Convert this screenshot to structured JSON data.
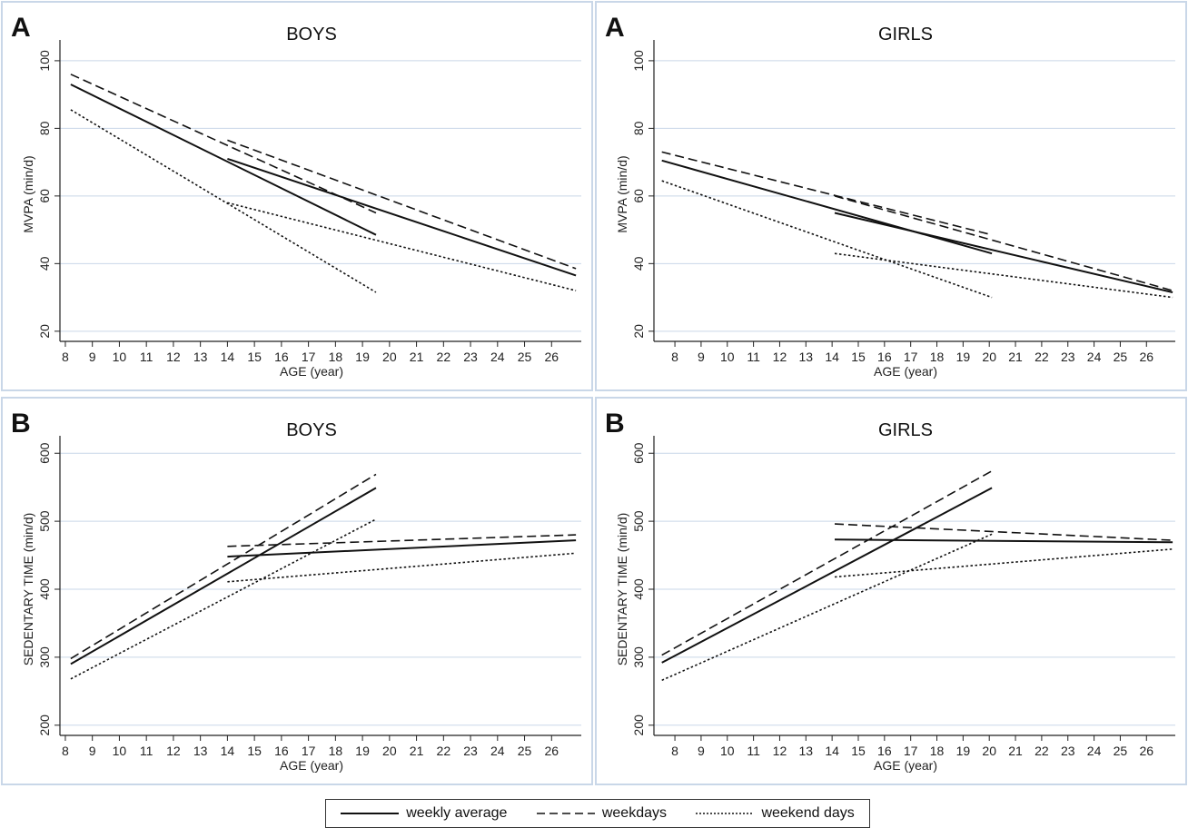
{
  "legend": {
    "items": [
      {
        "label": "weekly average",
        "style": "solid"
      },
      {
        "label": "weekdays",
        "style": "dashed"
      },
      {
        "label": "weekend days",
        "style": "dotted"
      }
    ]
  },
  "chart_data": [
    {
      "type": "line",
      "panel_letter": "A",
      "title": "BOYS",
      "xlabel": "AGE (year)",
      "ylabel": "MVPA (min/d)",
      "xlim": [
        7.8,
        27.1
      ],
      "ylim": [
        17,
        104
      ],
      "xticks": [
        8,
        9,
        10,
        11,
        12,
        13,
        14,
        15,
        16,
        17,
        18,
        19,
        20,
        21,
        22,
        23,
        24,
        25,
        26
      ],
      "yticks": [
        20,
        40,
        60,
        80,
        100
      ],
      "grid": true,
      "series": [
        {
          "name": "weekly average",
          "style": "solid",
          "x": [
            8.2,
            19.5
          ],
          "y": [
            93,
            48.5
          ]
        },
        {
          "name": "weekly average",
          "style": "solid",
          "x": [
            14,
            26.9
          ],
          "y": [
            71,
            36.5
          ]
        },
        {
          "name": "weekdays",
          "style": "dashed",
          "x": [
            8.2,
            19.5
          ],
          "y": [
            96,
            55
          ]
        },
        {
          "name": "weekdays",
          "style": "dashed",
          "x": [
            14,
            26.9
          ],
          "y": [
            76.5,
            38.5
          ]
        },
        {
          "name": "weekend days",
          "style": "dotted",
          "x": [
            8.2,
            19.5
          ],
          "y": [
            85.5,
            31.5
          ]
        },
        {
          "name": "weekend days",
          "style": "dotted",
          "x": [
            14,
            26.9
          ],
          "y": [
            58,
            32
          ]
        }
      ]
    },
    {
      "type": "line",
      "panel_letter": "A",
      "title": "GIRLS",
      "xlabel": "AGE (year)",
      "ylabel": "MVPA (min/d)",
      "xlim": [
        7.2,
        27.1
      ],
      "ylim": [
        17,
        104
      ],
      "xticks": [
        8,
        9,
        10,
        11,
        12,
        13,
        14,
        15,
        16,
        17,
        18,
        19,
        20,
        21,
        22,
        23,
        24,
        25,
        26
      ],
      "yticks": [
        20,
        40,
        60,
        80,
        100
      ],
      "grid": true,
      "series": [
        {
          "name": "weekly average",
          "style": "solid",
          "x": [
            7.5,
            20.1
          ],
          "y": [
            70.5,
            43
          ]
        },
        {
          "name": "weekly average",
          "style": "solid",
          "x": [
            14.1,
            27
          ],
          "y": [
            55,
            31.5
          ]
        },
        {
          "name": "weekdays",
          "style": "dashed",
          "x": [
            7.5,
            20.1
          ],
          "y": [
            73,
            48.5
          ]
        },
        {
          "name": "weekdays",
          "style": "dashed",
          "x": [
            14.1,
            27
          ],
          "y": [
            60,
            32
          ]
        },
        {
          "name": "weekend days",
          "style": "dotted",
          "x": [
            7.5,
            20.1
          ],
          "y": [
            64.5,
            30
          ]
        },
        {
          "name": "weekend days",
          "style": "dotted",
          "x": [
            14.1,
            27
          ],
          "y": [
            43,
            30
          ]
        }
      ]
    },
    {
      "type": "line",
      "panel_letter": "B",
      "title": "BOYS",
      "xlabel": "AGE (year)",
      "ylabel": "SEDENTARY TIME (min/d)",
      "xlim": [
        7.8,
        27.1
      ],
      "ylim": [
        185,
        615
      ],
      "xticks": [
        8,
        9,
        10,
        11,
        12,
        13,
        14,
        15,
        16,
        17,
        18,
        19,
        20,
        21,
        22,
        23,
        24,
        25,
        26
      ],
      "yticks": [
        200,
        300,
        400,
        500,
        600
      ],
      "grid": true,
      "series": [
        {
          "name": "weekly average",
          "style": "solid",
          "x": [
            8.2,
            19.5
          ],
          "y": [
            290,
            549
          ]
        },
        {
          "name": "weekly average",
          "style": "solid",
          "x": [
            14,
            26.9
          ],
          "y": [
            448,
            472
          ]
        },
        {
          "name": "weekdays",
          "style": "dashed",
          "x": [
            8.2,
            19.5
          ],
          "y": [
            298,
            569
          ]
        },
        {
          "name": "weekdays",
          "style": "dashed",
          "x": [
            14,
            26.9
          ],
          "y": [
            463,
            480
          ]
        },
        {
          "name": "weekend days",
          "style": "dotted",
          "x": [
            8.2,
            19.5
          ],
          "y": [
            268,
            503
          ]
        },
        {
          "name": "weekend days",
          "style": "dotted",
          "x": [
            14,
            26.9
          ],
          "y": [
            411,
            453
          ]
        }
      ]
    },
    {
      "type": "line",
      "panel_letter": "B",
      "title": "GIRLS",
      "xlabel": "AGE (year)",
      "ylabel": "SEDENTARY TIME (min/d)",
      "xlim": [
        7.2,
        27.1
      ],
      "ylim": [
        185,
        615
      ],
      "xticks": [
        8,
        9,
        10,
        11,
        12,
        13,
        14,
        15,
        16,
        17,
        18,
        19,
        20,
        21,
        22,
        23,
        24,
        25,
        26
      ],
      "yticks": [
        200,
        300,
        400,
        500,
        600
      ],
      "grid": true,
      "series": [
        {
          "name": "weekly average",
          "style": "solid",
          "x": [
            7.5,
            20.1
          ],
          "y": [
            292,
            549
          ]
        },
        {
          "name": "weekly average",
          "style": "solid",
          "x": [
            14.1,
            27
          ],
          "y": [
            473,
            469
          ]
        },
        {
          "name": "weekdays",
          "style": "dashed",
          "x": [
            7.5,
            20.1
          ],
          "y": [
            303,
            574
          ]
        },
        {
          "name": "weekdays",
          "style": "dashed",
          "x": [
            14.1,
            27
          ],
          "y": [
            496,
            472
          ]
        },
        {
          "name": "weekend days",
          "style": "dotted",
          "x": [
            7.5,
            20.1
          ],
          "y": [
            266,
            481
          ]
        },
        {
          "name": "weekend days",
          "style": "dotted",
          "x": [
            14.1,
            27
          ],
          "y": [
            418,
            459
          ]
        }
      ]
    }
  ],
  "colors": {
    "line": "#111111",
    "grid": "#c9d7e8",
    "frame": "#c9d7e8",
    "background": "#ffffff"
  }
}
